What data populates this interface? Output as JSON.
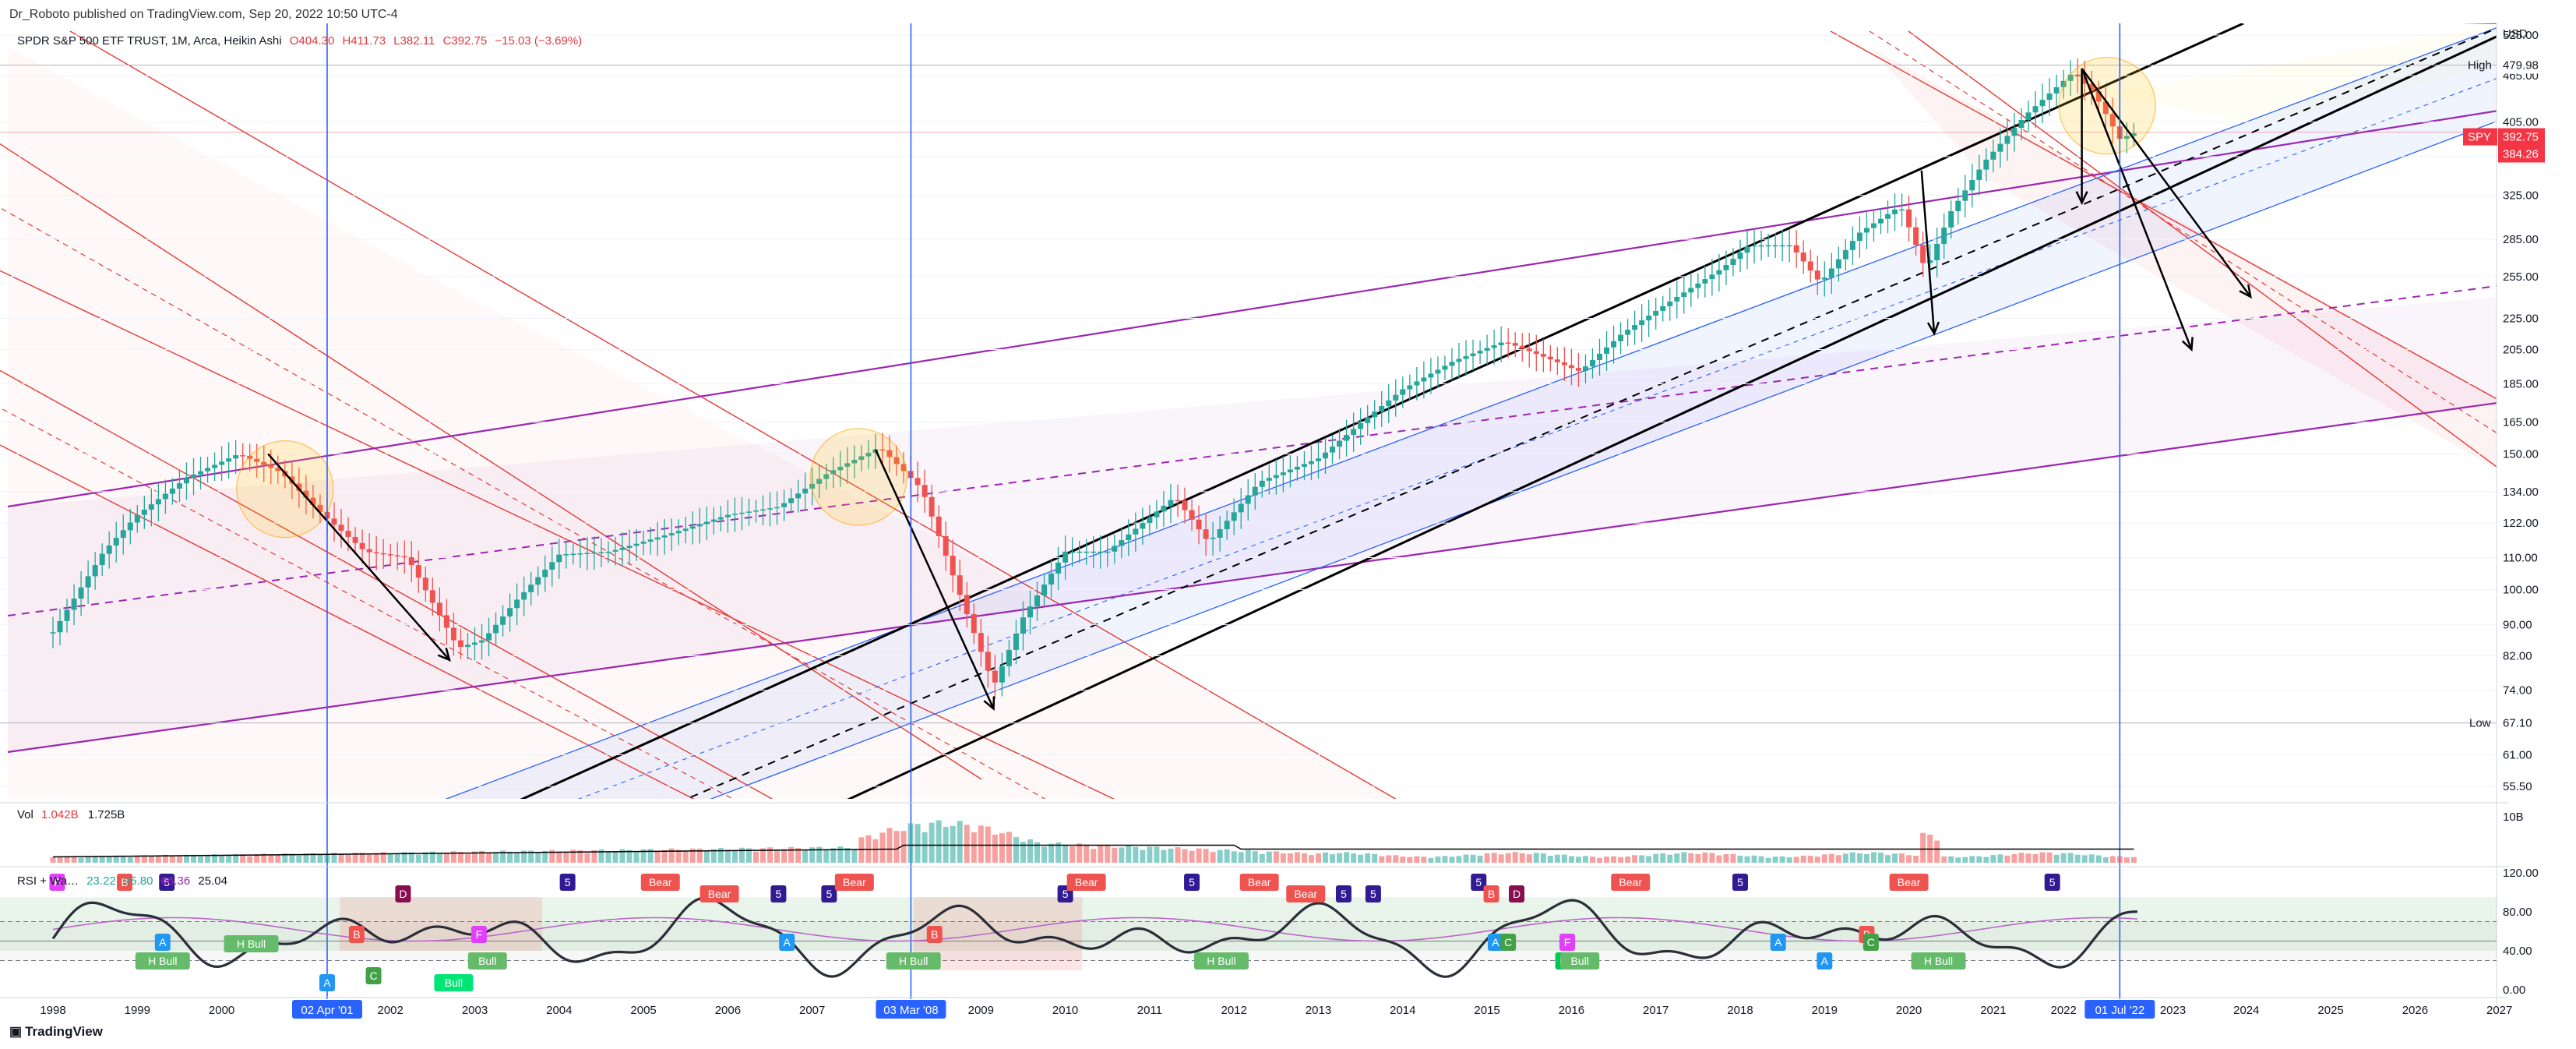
{
  "header": {
    "publisher": "Dr_Roboto published on TradingView.com, Sep 20, 2022 10:50 UTC-4"
  },
  "symbol": {
    "name": "SPDR S&P 500 ETF TRUST, 1M, Arca, Heikin Ashi",
    "open": "O404.30",
    "high": "H411.73",
    "low": "L382.11",
    "close": "C392.75",
    "change": "−15.03 (−3.69%)"
  },
  "colors": {
    "up": "#26a69a",
    "down": "#ef5350",
    "channel_red": "#e53935",
    "channel_purple": "#9c27b0",
    "channel_blue": "#2962ff",
    "vline": "#2962ff",
    "price_tag": "#f23645"
  },
  "chart_data": {
    "type": "candlestick",
    "symbol": "SPY",
    "timeframe": "1M",
    "scale": "log",
    "x_ticks": [
      "1998",
      "1999",
      "2000",
      "02 Apr '01",
      "2002",
      "2003",
      "2004",
      "2005",
      "2006",
      "2007",
      "03 Mar '08",
      "2009",
      "2010",
      "2011",
      "2012",
      "2013",
      "2014",
      "2015",
      "2016",
      "2017",
      "2018",
      "2019",
      "2020",
      "2021",
      "2022",
      "01 Jul '22",
      "2023",
      "2024",
      "2025",
      "2026",
      "2027"
    ],
    "y_ticks": [
      55.5,
      61.0,
      67.1,
      74.0,
      82.0,
      90.0,
      100.0,
      110.0,
      122.0,
      134.0,
      150.0,
      165.0,
      185.0,
      205.0,
      225.0,
      255.0,
      285.0,
      325.0,
      365.0,
      405.0,
      465.0,
      525.0
    ],
    "y_axis_unit": "USD",
    "markers": {
      "high_label": "High",
      "high": "479.98",
      "low_label": "Low",
      "low": "67.10",
      "last_symbol": "SPY",
      "last": "392.75",
      "last2": "384.26"
    },
    "vertical_markers": [
      "02 Apr '01",
      "03 Mar '08",
      "01 Jul '22"
    ],
    "price_path": [
      [
        1998.0,
        88
      ],
      [
        1998.6,
        112
      ],
      [
        1999.0,
        125
      ],
      [
        1999.6,
        140
      ],
      [
        2000.2,
        150
      ],
      [
        2000.7,
        142
      ],
      [
        2001.2,
        125
      ],
      [
        2001.7,
        112
      ],
      [
        2002.2,
        110
      ],
      [
        2002.8,
        84
      ],
      [
        2003.1,
        86
      ],
      [
        2003.5,
        97
      ],
      [
        2004.0,
        111
      ],
      [
        2004.6,
        112
      ],
      [
        2005.3,
        118
      ],
      [
        2006.0,
        125
      ],
      [
        2006.6,
        128
      ],
      [
        2007.2,
        142
      ],
      [
        2007.8,
        153
      ],
      [
        2008.3,
        135
      ],
      [
        2008.8,
        95
      ],
      [
        2009.15,
        75
      ],
      [
        2009.5,
        92
      ],
      [
        2010.0,
        112
      ],
      [
        2010.5,
        112
      ],
      [
        2011.3,
        132
      ],
      [
        2011.7,
        115
      ],
      [
        2012.3,
        138
      ],
      [
        2013.0,
        148
      ],
      [
        2013.6,
        168
      ],
      [
        2014.0,
        182
      ],
      [
        2014.6,
        198
      ],
      [
        2015.2,
        210
      ],
      [
        2015.7,
        200
      ],
      [
        2016.1,
        192
      ],
      [
        2016.6,
        215
      ],
      [
        2017.2,
        238
      ],
      [
        2017.8,
        262
      ],
      [
        2018.1,
        280
      ],
      [
        2018.6,
        280
      ],
      [
        2018.95,
        250
      ],
      [
        2019.4,
        290
      ],
      [
        2019.9,
        315
      ],
      [
        2020.2,
        260
      ],
      [
        2020.5,
        310
      ],
      [
        2020.9,
        360
      ],
      [
        2021.4,
        415
      ],
      [
        2021.95,
        470
      ],
      [
        2022.2,
        440
      ],
      [
        2022.5,
        385
      ],
      [
        2022.7,
        392.75
      ]
    ],
    "volume": {
      "label": "Vol",
      "value1": "1.042B",
      "value2": "1.725B",
      "y_ticks": [
        "10B"
      ]
    },
    "rsi": {
      "label": "RSI + Wa…",
      "values": [
        "23.22",
        "95.80",
        "66.36",
        "25.04"
      ],
      "y_ticks": [
        "120.00",
        "80.00",
        "40.00",
        "0.00"
      ],
      "signals": [
        {
          "x": 1998.05,
          "t": "F",
          "c": "#e040fb",
          "pos": "top"
        },
        {
          "x": 1998.85,
          "t": "B",
          "c": "#ef5350",
          "pos": "top"
        },
        {
          "x": 1999.35,
          "t": "5",
          "c": "#311b92",
          "pos": "top"
        },
        {
          "x": 1999.3,
          "t": "A",
          "c": "#2196f3",
          "pos": "low"
        },
        {
          "x": 1999.3,
          "t": "H Bull",
          "c": "#66bb6a",
          "pos": "bottom"
        },
        {
          "x": 2000.35,
          "t": "H Bull",
          "c": "#66bb6a",
          "pos": "mid"
        },
        {
          "x": 2001.25,
          "t": "A",
          "c": "#2196f3",
          "pos": "bottom2"
        },
        {
          "x": 2001.6,
          "t": "B",
          "c": "#ef5350",
          "pos": "mid2"
        },
        {
          "x": 2001.8,
          "t": "C",
          "c": "#43a047",
          "pos": "low2"
        },
        {
          "x": 2002.15,
          "t": "D",
          "c": "#880e4f",
          "pos": "top2"
        },
        {
          "x": 2002.75,
          "t": "Bull",
          "c": "#00e676",
          "pos": "bottom2"
        },
        {
          "x": 2003.05,
          "t": "F",
          "c": "#e040fb",
          "pos": "mid2"
        },
        {
          "x": 2003.15,
          "t": "Bull",
          "c": "#66bb6a",
          "pos": "bottom"
        },
        {
          "x": 2004.1,
          "t": "5",
          "c": "#311b92",
          "pos": "top"
        },
        {
          "x": 2005.2,
          "t": "Bear",
          "c": "#ef5350",
          "pos": "top"
        },
        {
          "x": 2005.9,
          "t": "Bear",
          "c": "#ef5350",
          "pos": "top2"
        },
        {
          "x": 2006.6,
          "t": "5",
          "c": "#311b92",
          "pos": "top2"
        },
        {
          "x": 2006.7,
          "t": "A",
          "c": "#2196f3",
          "pos": "low"
        },
        {
          "x": 2007.2,
          "t": "5",
          "c": "#311b92",
          "pos": "top2"
        },
        {
          "x": 2007.5,
          "t": "Bear",
          "c": "#ef5350",
          "pos": "top"
        },
        {
          "x": 2008.2,
          "t": "H Bull",
          "c": "#66bb6a",
          "pos": "bottom"
        },
        {
          "x": 2008.45,
          "t": "B",
          "c": "#ef5350",
          "pos": "mid2"
        },
        {
          "x": 2010.0,
          "t": "5",
          "c": "#311b92",
          "pos": "top2"
        },
        {
          "x": 2010.25,
          "t": "Bear",
          "c": "#ef5350",
          "pos": "top"
        },
        {
          "x": 2011.5,
          "t": "5",
          "c": "#311b92",
          "pos": "top"
        },
        {
          "x": 2011.85,
          "t": "H Bull",
          "c": "#66bb6a",
          "pos": "bottom"
        },
        {
          "x": 2012.3,
          "t": "Bear",
          "c": "#ef5350",
          "pos": "top"
        },
        {
          "x": 2012.85,
          "t": "Bear",
          "c": "#ef5350",
          "pos": "top2"
        },
        {
          "x": 2013.3,
          "t": "5",
          "c": "#311b92",
          "pos": "top2"
        },
        {
          "x": 2013.65,
          "t": "5",
          "c": "#311b92",
          "pos": "top2"
        },
        {
          "x": 2014.9,
          "t": "5",
          "c": "#311b92",
          "pos": "top"
        },
        {
          "x": 2015.1,
          "t": "A",
          "c": "#2196f3",
          "pos": "low"
        },
        {
          "x": 2015.25,
          "t": "C",
          "c": "#43a047",
          "pos": "low"
        },
        {
          "x": 2015.05,
          "t": "B",
          "c": "#ef5350",
          "pos": "top2"
        },
        {
          "x": 2015.35,
          "t": "D",
          "c": "#880e4f",
          "pos": "top2"
        },
        {
          "x": 2015.9,
          "t": "E",
          "c": "#00c853",
          "pos": "bottom"
        },
        {
          "x": 2015.95,
          "t": "F",
          "c": "#e040fb",
          "pos": "low"
        },
        {
          "x": 2016.1,
          "t": "Bull",
          "c": "#66bb6a",
          "pos": "bottom"
        },
        {
          "x": 2016.7,
          "t": "Bear",
          "c": "#ef5350",
          "pos": "top"
        },
        {
          "x": 2018.0,
          "t": "5",
          "c": "#311b92",
          "pos": "top"
        },
        {
          "x": 2018.45,
          "t": "A",
          "c": "#2196f3",
          "pos": "low"
        },
        {
          "x": 2019.0,
          "t": "A",
          "c": "#2196f3",
          "pos": "bottom"
        },
        {
          "x": 2019.5,
          "t": "B",
          "c": "#ef5350",
          "pos": "mid2"
        },
        {
          "x": 2019.55,
          "t": "C",
          "c": "#43a047",
          "pos": "low"
        },
        {
          "x": 2020.0,
          "t": "Bear",
          "c": "#ef5350",
          "pos": "top"
        },
        {
          "x": 2020.35,
          "t": "H Bull",
          "c": "#66bb6a",
          "pos": "bottom"
        },
        {
          "x": 2021.7,
          "t": "5",
          "c": "#311b92",
          "pos": "top"
        }
      ]
    }
  }
}
